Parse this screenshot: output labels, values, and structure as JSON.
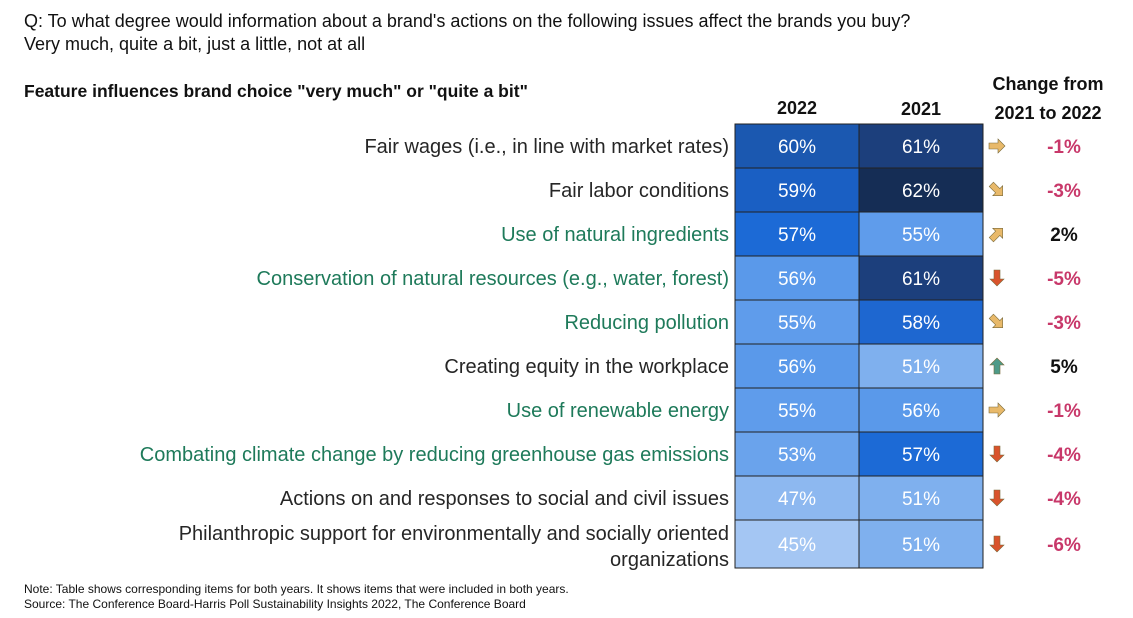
{
  "question": {
    "line1": "Q: To what degree would information about a brand's actions on the following issues affect the brands you buy?",
    "line2": "Very much, quite a bit, just a little, not at all"
  },
  "subtitle": "Feature influences brand choice \"very much\" or \"quite a bit\"",
  "headers": {
    "col_2022": "2022",
    "col_2021": "2021",
    "change_line1": "Change from",
    "change_line2": "2021 to 2022"
  },
  "colors": {
    "label_social": "#262626",
    "label_environmental": "#1e7a5a",
    "change_positive": "#111111",
    "change_neutral": "#111111",
    "change_negative": "#c8386a",
    "arrow_down": "#d9532c",
    "arrow_diag": "#e8b96a",
    "arrow_up": "#4e9a88"
  },
  "chart_data": {
    "type": "table",
    "columns": [
      "2022",
      "2021"
    ],
    "rows": [
      {
        "label": "Fair wages (i.e., in line with market rates)",
        "category": "social",
        "v2022": 60,
        "v2021": 61,
        "change": "-1%",
        "arrow": "right"
      },
      {
        "label": "Fair labor conditions",
        "category": "social",
        "v2022": 59,
        "v2021": 62,
        "change": "-3%",
        "arrow": "down-right"
      },
      {
        "label": "Use of natural ingredients",
        "category": "environmental",
        "v2022": 57,
        "v2021": 55,
        "change": "2%",
        "arrow": "up-right"
      },
      {
        "label": "Conservation of natural resources (e.g., water, forest)",
        "category": "environmental",
        "v2022": 56,
        "v2021": 61,
        "change": "-5%",
        "arrow": "down"
      },
      {
        "label": "Reducing pollution",
        "category": "environmental",
        "v2022": 55,
        "v2021": 58,
        "change": "-3%",
        "arrow": "down-right"
      },
      {
        "label": "Creating equity in the workplace",
        "category": "social",
        "v2022": 56,
        "v2021": 51,
        "change": "5%",
        "arrow": "up"
      },
      {
        "label": "Use of renewable energy",
        "category": "environmental",
        "v2022": 55,
        "v2021": 56,
        "change": "-1%",
        "arrow": "right"
      },
      {
        "label": "Combating climate change by reducing greenhouse gas emissions",
        "category": "environmental",
        "v2022": 53,
        "v2021": 57,
        "change": "-4%",
        "arrow": "down"
      },
      {
        "label": "Actions on and responses to social and civil issues",
        "category": "social",
        "v2022": 47,
        "v2021": 51,
        "change": "-4%",
        "arrow": "down"
      },
      {
        "label": "Philanthropic support for environmentally and socially oriented organizations",
        "category": "social",
        "v2022": 45,
        "v2021": 51,
        "change": "-6%",
        "arrow": "down"
      }
    ],
    "color_scale": {
      "45": "#a4c6f3",
      "47": "#8db8f0",
      "51": "#7fb0ee",
      "53": "#6aa3ec",
      "55": "#5f9ceb",
      "56": "#5a99ea",
      "57": "#1c6ad6",
      "58": "#1e67d0",
      "59": "#1a5fc3",
      "60": "#1b58b0",
      "61": "#1c3f7c",
      "62": "#152d55"
    }
  },
  "note": {
    "line1": "Note: Table shows corresponding items for both years. It shows items that were included in both years.",
    "line2": "Source: The Conference Board-Harris Poll Sustainability Insights 2022, The Conference Board"
  }
}
